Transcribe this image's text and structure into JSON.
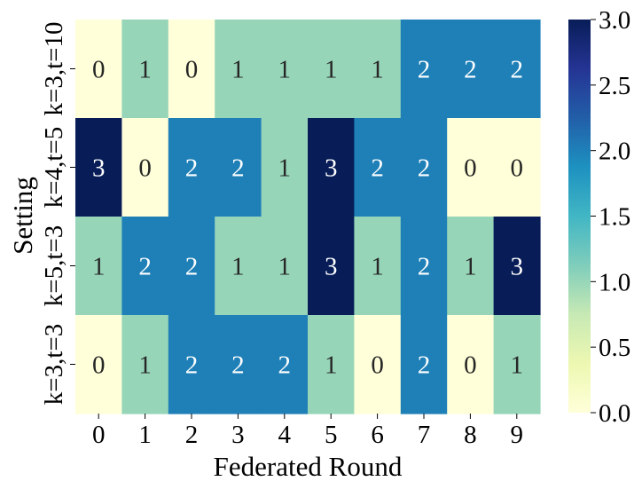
{
  "chart_data": {
    "type": "heatmap",
    "xlabel": "Federated Round",
    "ylabel": "Setting",
    "x_categories": [
      "0",
      "1",
      "2",
      "3",
      "4",
      "5",
      "6",
      "7",
      "8",
      "9"
    ],
    "y_categories": [
      "k=3,t=10",
      "k=4,t=5",
      "k=5,t=3",
      "k=3,t=3"
    ],
    "values": [
      [
        0,
        1,
        0,
        1,
        1,
        1,
        1,
        2,
        2,
        2
      ],
      [
        3,
        0,
        2,
        2,
        1,
        3,
        2,
        2,
        0,
        0
      ],
      [
        1,
        2,
        2,
        1,
        1,
        3,
        1,
        2,
        1,
        3
      ],
      [
        0,
        1,
        2,
        2,
        2,
        1,
        0,
        2,
        0,
        1
      ]
    ],
    "vmin": 0,
    "vmax": 3,
    "colorbar_ticks": [
      "0.0",
      "0.5",
      "1.0",
      "1.5",
      "2.0",
      "2.5",
      "3.0"
    ],
    "colormap": "YlGnBu",
    "cell_colors": {
      "0": "#ffffd9",
      "1": "#97d5b9",
      "2": "#1f80b8",
      "3": "#081d58"
    },
    "annotation_colors": {
      "light_cell_text": "#262626",
      "dark_cell_text": "#ffffff"
    },
    "annotated": true,
    "grid": false
  }
}
